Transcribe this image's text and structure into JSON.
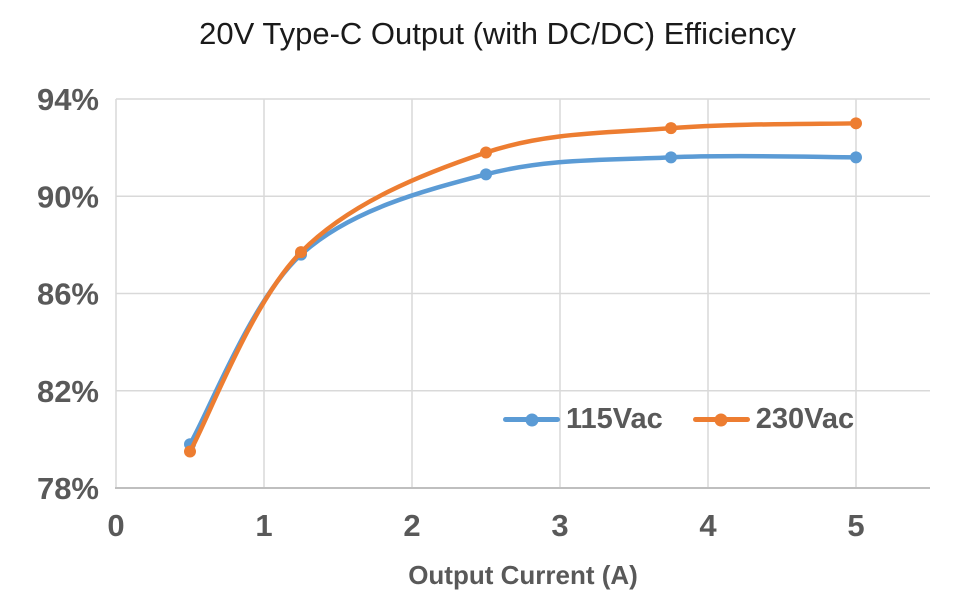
{
  "chart_data": {
    "type": "line",
    "title": "20V Type-C Output (with DC/DC) Efficiency",
    "xlabel": "Output Current (A)",
    "ylabel": "",
    "x": [
      0.5,
      1.25,
      2.5,
      3.75,
      5
    ],
    "series": [
      {
        "name": "115Vac",
        "color": "#5B9BD5",
        "values": [
          79.8,
          87.6,
          90.9,
          91.6,
          91.6
        ]
      },
      {
        "name": "230Vac",
        "color": "#ED7D31",
        "values": [
          79.5,
          87.7,
          91.8,
          92.8,
          93.0
        ]
      }
    ],
    "xlim": [
      0,
      5.5
    ],
    "ylim": [
      78,
      94
    ],
    "x_ticks": [
      0,
      1,
      2,
      3,
      4,
      5
    ],
    "y_ticks": [
      78,
      82,
      86,
      90,
      94
    ],
    "y_tick_suffix": "%",
    "grid": true,
    "smooth": true,
    "legend_position": "inside-bottom-right"
  },
  "colors": {
    "gridline": "#d9d9d9",
    "axis_line": "#bfbfbf",
    "title_text": "#1a1a1a",
    "axis_text": "#595959",
    "background": "#ffffff"
  }
}
